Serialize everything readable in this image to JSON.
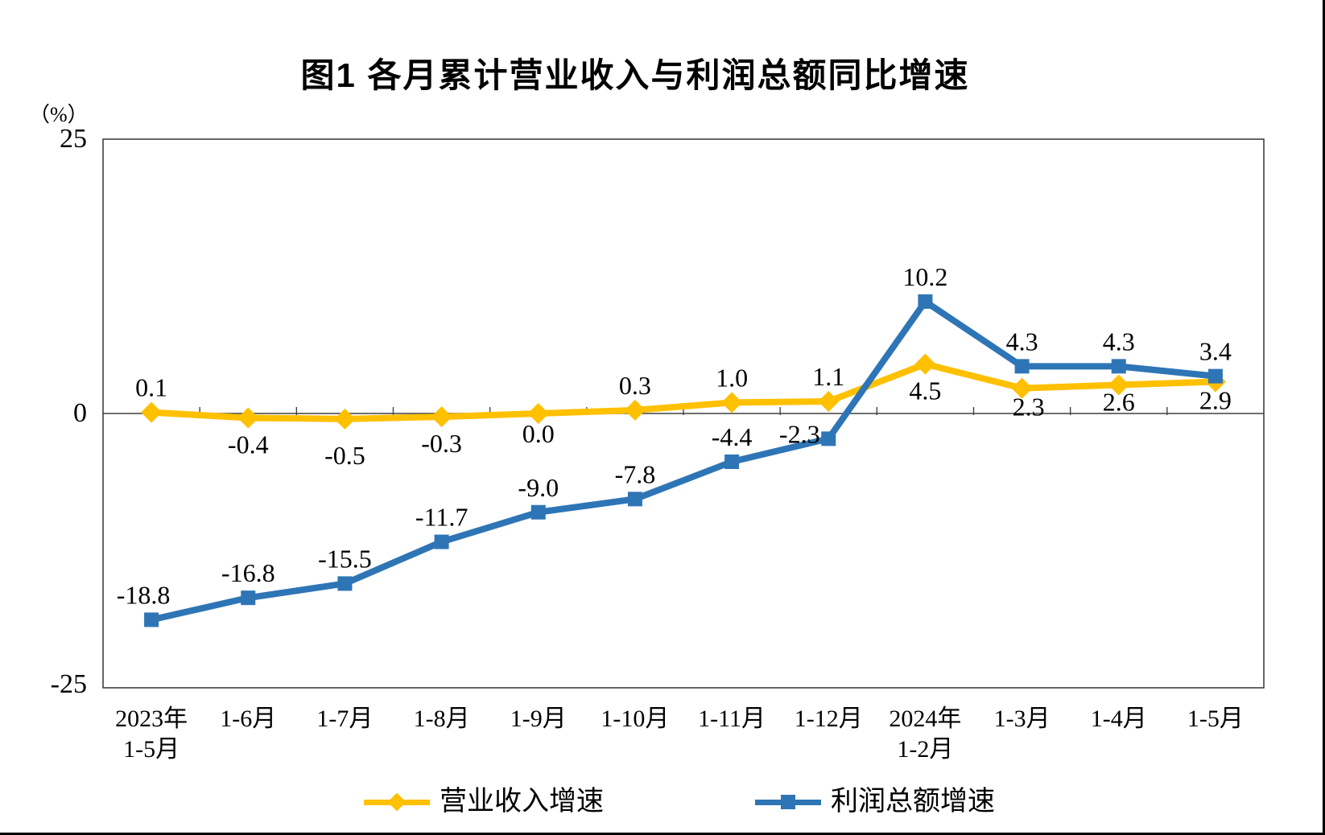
{
  "page": {
    "background": "#FFFFFF",
    "frame_color": "#404040",
    "outer_border_color": "#000000"
  },
  "chart_data": {
    "type": "line",
    "title": "图1  各月累计营业收入与利润总额同比增速",
    "ylabel": "（%）",
    "xlabel": "",
    "ylim": [
      -25,
      25
    ],
    "yticks": [
      {
        "value": 25,
        "label": "25"
      },
      {
        "value": 0,
        "label": "0"
      },
      {
        "value": -25,
        "label": "-25"
      }
    ],
    "grid": false,
    "legend_position": "bottom",
    "categories": [
      "2023年\n1-5月",
      "1-6月",
      "1-7月",
      "1-8月",
      "1-9月",
      "1-10月",
      "1-11月",
      "1-12月",
      "2024年\n1-2月",
      "1-3月",
      "1-4月",
      "1-5月"
    ],
    "series": [
      {
        "id": "revenue",
        "name": "营业收入增速",
        "color": "#FFC000",
        "marker": "diamond",
        "values": [
          0.1,
          -0.4,
          -0.5,
          -0.3,
          0.0,
          0.3,
          1.0,
          1.1,
          4.5,
          2.3,
          2.6,
          2.9
        ],
        "labels": [
          "0.1",
          "-0.4",
          "-0.5",
          "-0.3",
          "0.0",
          "0.3",
          "1.0",
          "1.1",
          "4.5",
          "2.3",
          "2.6",
          "2.9"
        ],
        "label_side": [
          "above",
          "below",
          "below",
          "below",
          "below",
          "above",
          "above",
          "above",
          "below",
          "below",
          "below",
          "below"
        ],
        "label_offsets": {
          "2": {
            "dx": 0,
            "dy": 12
          },
          "4": {
            "dx": 0,
            "dy": -8
          },
          "9": {
            "dx": 8,
            "dy": -10
          },
          "10": {
            "dx": 0,
            "dy": -12
          },
          "11": {
            "dx": 0,
            "dy": -10
          }
        }
      },
      {
        "id": "profit",
        "name": "利润总额增速",
        "color": "#2E75B6",
        "marker": "square",
        "values": [
          -18.8,
          -16.8,
          -15.5,
          -11.7,
          -9.0,
          -7.8,
          -4.4,
          -2.3,
          10.2,
          4.3,
          4.3,
          3.4
        ],
        "labels": [
          "-18.8",
          "-16.8",
          "-15.5",
          "-11.7",
          "-9.0",
          "-7.8",
          "-4.4",
          "-2.3",
          "10.2",
          "4.3",
          "4.3",
          "3.4"
        ],
        "label_side": [
          "above",
          "above",
          "above",
          "above",
          "above",
          "above",
          "above",
          "above",
          "above",
          "above",
          "above",
          "above"
        ],
        "label_offsets": {
          "0": {
            "dx": -10,
            "dy": 0
          },
          "7": {
            "dx": -36,
            "dy": 25
          }
        }
      }
    ]
  }
}
